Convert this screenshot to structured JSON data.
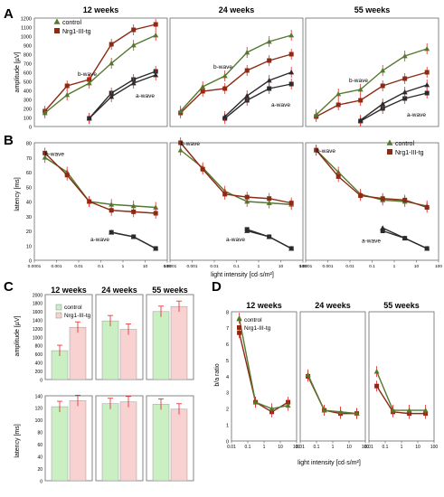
{
  "colors": {
    "control": "#55782e",
    "tg": "#8c2a14",
    "dark": "#2b2b2b",
    "control_bar": "#c9efc2",
    "tg_bar": "#f8d2d0",
    "error": "#e32626"
  },
  "panel_letters": [
    "A",
    "B",
    "C",
    "D"
  ],
  "legend": {
    "control": "control",
    "tg": "Nrg1-III-tg"
  },
  "ages": [
    "12 weeks",
    "24 weeks",
    "55 weeks"
  ],
  "a": {
    "ylabel": "amplitude [µV]",
    "yticks": [
      "0",
      "100",
      "200",
      "300",
      "400",
      "500",
      "600",
      "700",
      "800",
      "900",
      "1000",
      "1100",
      "1200"
    ],
    "b_label": "b-wave",
    "a_label": "a-wave",
    "panels": [
      {
        "title": "12 weeks",
        "b_control": {
          "x": [
            0.0003,
            0.003,
            0.03,
            0.3,
            3,
            30
          ],
          "y": [
            150,
            350,
            480,
            700,
            900,
            1010
          ]
        },
        "b_tg": {
          "x": [
            0.0003,
            0.003,
            0.03,
            0.3,
            3,
            30
          ],
          "y": [
            170,
            450,
            520,
            910,
            1070,
            1130
          ]
        },
        "a_control": {
          "x": [
            0.03,
            0.3,
            3,
            30
          ],
          "y": [
            90,
            330,
            480,
            570
          ]
        },
        "a_tg": {
          "x": [
            0.03,
            0.3,
            3,
            30
          ],
          "y": [
            90,
            370,
            520,
            610
          ]
        }
      },
      {
        "title": "24 weeks",
        "b_control": {
          "x": [
            0.0003,
            0.003,
            0.03,
            0.3,
            3,
            30
          ],
          "y": [
            170,
            440,
            560,
            820,
            940,
            1010
          ]
        },
        "b_tg": {
          "x": [
            0.0003,
            0.003,
            0.03,
            0.3,
            3,
            30
          ],
          "y": [
            150,
            390,
            420,
            620,
            730,
            800
          ]
        },
        "a_control": {
          "x": [
            0.03,
            0.3,
            3,
            30
          ],
          "y": [
            110,
            340,
            510,
            600
          ]
        },
        "a_tg": {
          "x": [
            0.03,
            0.3,
            3,
            30
          ],
          "y": [
            90,
            290,
            420,
            470
          ]
        }
      },
      {
        "title": "55 weeks",
        "b_control": {
          "x": [
            0.0003,
            0.003,
            0.03,
            0.3,
            3,
            30
          ],
          "y": [
            130,
            360,
            410,
            620,
            780,
            860
          ]
        },
        "b_tg": {
          "x": [
            0.0003,
            0.003,
            0.03,
            0.3,
            3,
            30
          ],
          "y": [
            110,
            240,
            290,
            450,
            530,
            600
          ]
        },
        "a_control": {
          "x": [
            0.03,
            0.3,
            3,
            30
          ],
          "y": [
            70,
            250,
            380,
            460
          ]
        },
        "a_tg": {
          "x": [
            0.03,
            0.3,
            3,
            30
          ],
          "y": [
            60,
            200,
            310,
            370
          ]
        }
      }
    ]
  },
  "b": {
    "ylabel": "latency [ms]",
    "yticks": [
      "0",
      "10",
      "20",
      "30",
      "40",
      "50",
      "60",
      "70",
      "80"
    ],
    "xlabel": "light intensity [cd·s/m²]",
    "xticks": [
      "0.0001",
      "0.001",
      "0.01",
      "0.1",
      "1",
      "10",
      "100"
    ],
    "b_label": "b-wave",
    "a_label": "a-wave",
    "panels": [
      {
        "b_control": {
          "x": [
            0.0003,
            0.003,
            0.03,
            0.3,
            3,
            30
          ],
          "y": [
            70,
            60,
            40,
            38,
            37,
            36
          ]
        },
        "b_tg": {
          "x": [
            0.0003,
            0.003,
            0.03,
            0.3,
            3,
            30
          ],
          "y": [
            73,
            58,
            40,
            34,
            33,
            32
          ]
        },
        "a_control": {
          "x": [
            0.3,
            3,
            30
          ],
          "y": [
            19,
            16,
            8
          ]
        },
        "a_tg": {
          "x": [
            0.3,
            3,
            30
          ],
          "y": [
            19,
            16,
            8
          ]
        }
      },
      {
        "b_control": {
          "x": [
            0.0003,
            0.003,
            0.03,
            0.3,
            3,
            30
          ],
          "y": [
            75,
            63,
            47,
            40,
            39,
            38
          ]
        },
        "b_tg": {
          "x": [
            0.0003,
            0.003,
            0.03,
            0.3,
            3,
            30
          ],
          "y": [
            80,
            62,
            45,
            43,
            42,
            39
          ]
        },
        "a_control": {
          "x": [
            0.3,
            3,
            30
          ],
          "y": [
            20,
            16,
            8
          ]
        },
        "a_tg": {
          "x": [
            0.3,
            3,
            30
          ],
          "y": [
            21,
            16,
            8
          ]
        }
      },
      {
        "b_control": {
          "x": [
            0.0003,
            0.003,
            0.03,
            0.3,
            3,
            30
          ],
          "y": [
            75,
            60,
            45,
            41,
            40,
            37
          ]
        },
        "b_tg": {
          "x": [
            0.0003,
            0.003,
            0.03,
            0.3,
            3,
            30
          ],
          "y": [
            75,
            57,
            44,
            42,
            41,
            36
          ]
        },
        "a_control": {
          "x": [
            0.3,
            3,
            30
          ],
          "y": [
            22,
            15,
            8
          ]
        },
        "a_tg": {
          "x": [
            0.3,
            3,
            30
          ],
          "y": [
            20,
            15,
            8
          ]
        }
      }
    ]
  },
  "c": {
    "amp_ylabel": "amplitude [µV]",
    "amp_yticks": [
      "0",
      "200",
      "400",
      "600",
      "800",
      "1000",
      "1200",
      "1400",
      "1600",
      "1800",
      "2000"
    ],
    "lat_ylabel": "latency [ms]",
    "lat_yticks": [
      "0",
      "20",
      "40",
      "60",
      "80",
      "100",
      "120",
      "140"
    ],
    "legend": {
      "control": "control",
      "tg": "Nrg1-III-tg"
    },
    "panels": [
      {
        "title": "12 weeks",
        "amp": {
          "control": 680,
          "tg": 1230
        },
        "lat": {
          "control": 122,
          "tg": 132
        }
      },
      {
        "title": "24 weeks",
        "amp": {
          "control": 1380,
          "tg": 1180
        },
        "lat": {
          "control": 127,
          "tg": 130
        }
      },
      {
        "title": "55 weeks",
        "amp": {
          "control": 1600,
          "tg": 1720
        },
        "lat": {
          "control": 126,
          "tg": 118
        }
      }
    ]
  },
  "d": {
    "ylabel": "b/a ratio",
    "yticks": [
      "0",
      "1",
      "2",
      "3",
      "4",
      "5",
      "6",
      "7",
      "8"
    ],
    "xlabel": "light intensity [cd·s/m²]",
    "xticks": [
      "0.01",
      "0.1",
      "1",
      "10",
      "100"
    ],
    "legend": {
      "control": "control",
      "tg": "Nrg1-III-tg"
    },
    "panels": [
      {
        "title": "12 weeks",
        "control": {
          "x": [
            0.03,
            0.3,
            3,
            30
          ],
          "y": [
            7.6,
            2.4,
            2.0,
            2.2
          ]
        },
        "tg": {
          "x": [
            0.03,
            0.3,
            3,
            30
          ],
          "y": [
            6.7,
            2.4,
            1.8,
            2.4
          ]
        }
      },
      {
        "title": "24 weeks",
        "control": {
          "x": [
            0.03,
            0.3,
            3,
            30
          ],
          "y": [
            4.1,
            1.9,
            1.8,
            1.7
          ]
        },
        "tg": {
          "x": [
            0.03,
            0.3,
            3,
            30
          ],
          "y": [
            4.0,
            1.9,
            1.7,
            1.7
          ]
        }
      },
      {
        "title": "55 weeks",
        "control": {
          "x": [
            0.03,
            0.3,
            3,
            30
          ],
          "y": [
            4.3,
            1.9,
            1.9,
            1.9
          ]
        },
        "tg": {
          "x": [
            0.03,
            0.3,
            3,
            30
          ],
          "y": [
            3.4,
            1.8,
            1.7,
            1.7
          ]
        }
      }
    ]
  },
  "chart_data": [
    {
      "type": "line",
      "panel": "A",
      "ylabel": "amplitude [µV]",
      "ylim": [
        0,
        1200
      ],
      "x": [
        0.0003,
        0.003,
        0.03,
        0.3,
        3,
        30
      ],
      "series": [
        {
          "name": "control",
          "values": [
            150,
            350,
            480,
            700,
            900,
            1010
          ]
        },
        {
          "name": "Nrg1-III-tg",
          "values": [
            170,
            450,
            520,
            910,
            1070,
            1130
          ]
        }
      ]
    },
    {
      "type": "line",
      "panel": "B",
      "ylabel": "latency [ms]",
      "xlabel": "light intensity [cd·s/m²]",
      "ylim": [
        0,
        80
      ],
      "x": [
        0.0003,
        0.003,
        0.03,
        0.3,
        3,
        30
      ],
      "series": [
        {
          "name": "control",
          "values": [
            70,
            60,
            40,
            38,
            37,
            36
          ]
        },
        {
          "name": "Nrg1-III-tg",
          "values": [
            73,
            58,
            40,
            34,
            33,
            32
          ]
        }
      ]
    },
    {
      "type": "bar",
      "panel": "C",
      "ylabel": "amplitude [µV]",
      "ylim": [
        0,
        2000
      ],
      "categories": [
        "12 weeks",
        "24 weeks",
        "55 weeks"
      ],
      "series": [
        {
          "name": "control",
          "values": [
            680,
            1380,
            1600
          ]
        },
        {
          "name": "Nrg1-III-tg",
          "values": [
            1230,
            1180,
            1720
          ]
        }
      ]
    },
    {
      "type": "line",
      "panel": "D",
      "ylabel": "b/a ratio",
      "xlabel": "light intensity [cd·s/m²]",
      "ylim": [
        0,
        8
      ],
      "x": [
        0.03,
        0.3,
        3,
        30
      ],
      "series": [
        {
          "name": "control",
          "values": [
            7.6,
            2.4,
            2.0,
            2.2
          ]
        },
        {
          "name": "Nrg1-III-tg",
          "values": [
            6.7,
            2.4,
            1.8,
            2.4
          ]
        }
      ]
    }
  ]
}
